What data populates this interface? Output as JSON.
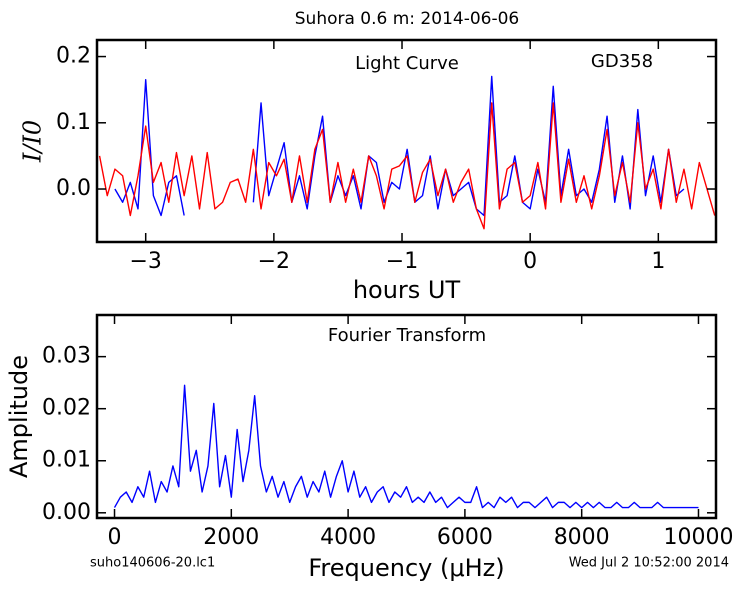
{
  "title": "Suhora 0.6 m:  2014-06-06",
  "footer": {
    "left": "suho140606-20.lc1",
    "right": "Wed Jul  2 10:52:00 2014"
  },
  "chart_data": [
    {
      "type": "line",
      "annotation": "Light Curve",
      "target": "GD358",
      "xlabel": "hours UT",
      "ylabel": "I/I0",
      "xlim": [
        -3.38,
        1.45
      ],
      "ylim": [
        -0.08,
        0.225
      ],
      "xticks": [
        {
          "value": -3,
          "label": "−3"
        },
        {
          "value": -2,
          "label": "−2"
        },
        {
          "value": -1,
          "label": "−1"
        },
        0,
        1
      ],
      "yticks": [
        {
          "value": 0,
          "label": "0.0"
        },
        0.1,
        0.2
      ],
      "x": [
        -3.36,
        -3.3,
        -3.24,
        -3.18,
        -3.12,
        -3.06,
        -3.0,
        -2.94,
        -2.88,
        -2.82,
        -2.76,
        -2.7,
        -2.64,
        -2.58,
        -2.52,
        -2.46,
        -2.4,
        -2.34,
        -2.28,
        -2.22,
        -2.16,
        -2.1,
        -2.04,
        -1.98,
        -1.92,
        -1.86,
        -1.8,
        -1.74,
        -1.68,
        -1.62,
        -1.56,
        -1.5,
        -1.44,
        -1.38,
        -1.32,
        -1.26,
        -1.2,
        -1.14,
        -1.08,
        -1.02,
        -0.96,
        -0.9,
        -0.84,
        -0.78,
        -0.72,
        -0.66,
        -0.6,
        -0.54,
        -0.48,
        -0.42,
        -0.36,
        -0.3,
        -0.24,
        -0.18,
        -0.12,
        -0.06,
        0.0,
        0.06,
        0.12,
        0.18,
        0.24,
        0.3,
        0.36,
        0.42,
        0.48,
        0.54,
        0.6,
        0.66,
        0.72,
        0.78,
        0.84,
        0.9,
        0.96,
        1.02,
        1.08,
        1.14,
        1.2,
        1.26,
        1.32,
        1.38,
        1.44
      ],
      "series": [
        {
          "color": "#0000ff",
          "values": [
            null,
            null,
            0.0,
            -0.02,
            0.01,
            -0.03,
            0.165,
            -0.01,
            -0.04,
            0.01,
            0.02,
            -0.04,
            null,
            null,
            null,
            null,
            null,
            null,
            null,
            null,
            -0.02,
            0.13,
            -0.01,
            0.03,
            0.07,
            -0.02,
            0.02,
            -0.03,
            0.05,
            0.11,
            -0.02,
            0.02,
            -0.01,
            0.02,
            -0.03,
            0.05,
            0.04,
            -0.02,
            0.01,
            0.0,
            0.06,
            -0.02,
            -0.01,
            0.05,
            -0.03,
            0.03,
            -0.01,
            0.0,
            0.01,
            -0.03,
            -0.04,
            0.17,
            -0.02,
            -0.01,
            0.05,
            -0.02,
            -0.03,
            0.03,
            -0.02,
            0.155,
            -0.01,
            0.06,
            -0.01,
            0.0,
            -0.02,
            0.03,
            0.11,
            -0.02,
            0.05,
            -0.03,
            0.12,
            -0.01,
            0.05,
            -0.02,
            0.06,
            -0.01,
            0.0,
            null,
            null,
            null,
            null
          ]
        },
        {
          "color": "#ff0000",
          "values": [
            0.05,
            -0.01,
            0.03,
            0.02,
            -0.04,
            0.02,
            0.095,
            0.01,
            0.04,
            -0.02,
            0.055,
            -0.01,
            0.05,
            -0.03,
            0.055,
            -0.03,
            -0.02,
            0.01,
            0.015,
            -0.02,
            0.06,
            -0.03,
            0.04,
            0.02,
            0.045,
            -0.02,
            0.05,
            -0.02,
            0.06,
            0.09,
            -0.02,
            0.04,
            -0.02,
            0.03,
            -0.02,
            0.05,
            0.02,
            -0.03,
            0.03,
            0.035,
            0.05,
            -0.02,
            0.025,
            0.045,
            -0.01,
            0.03,
            -0.02,
            0.01,
            0.03,
            -0.03,
            -0.06,
            0.13,
            -0.03,
            0.03,
            0.04,
            -0.02,
            -0.01,
            0.04,
            -0.03,
            0.13,
            -0.02,
            0.045,
            -0.02,
            0.02,
            -0.03,
            0.02,
            0.09,
            -0.01,
            0.04,
            -0.02,
            0.1,
            0.0,
            0.03,
            -0.03,
            0.06,
            -0.02,
            0.03,
            -0.03,
            0.04,
            0.0,
            -0.04
          ]
        }
      ]
    },
    {
      "type": "line",
      "annotation": "Fourier Transform",
      "xlabel": "Frequency (μHz)",
      "ylabel": "Amplitude",
      "xlim": [
        -300,
        10300
      ],
      "ylim": [
        -0.001,
        0.038
      ],
      "xticks": [
        0,
        2000,
        4000,
        6000,
        8000,
        10000
      ],
      "yticks": [
        {
          "value": 0,
          "label": "0.00"
        },
        0.01,
        0.02,
        0.03
      ],
      "x": [
        0,
        100,
        200,
        300,
        400,
        500,
        600,
        700,
        800,
        900,
        1000,
        1100,
        1200,
        1300,
        1400,
        1500,
        1600,
        1700,
        1800,
        1900,
        2000,
        2100,
        2200,
        2300,
        2400,
        2500,
        2600,
        2700,
        2800,
        2900,
        3000,
        3100,
        3200,
        3300,
        3400,
        3500,
        3600,
        3700,
        3800,
        3900,
        4000,
        4100,
        4200,
        4300,
        4400,
        4500,
        4600,
        4700,
        4800,
        4900,
        5000,
        5100,
        5200,
        5300,
        5400,
        5500,
        5600,
        5700,
        5800,
        5900,
        6000,
        6100,
        6200,
        6300,
        6400,
        6500,
        6600,
        6700,
        6800,
        6900,
        7000,
        7100,
        7200,
        7300,
        7400,
        7500,
        7600,
        7700,
        7800,
        7900,
        8000,
        8100,
        8200,
        8300,
        8400,
        8500,
        8600,
        8700,
        8800,
        8900,
        9000,
        9100,
        9200,
        9300,
        9400,
        9500,
        9600,
        9700,
        9800,
        9900,
        10000
      ],
      "series": [
        {
          "color": "#0000ff",
          "values": [
            0.001,
            0.003,
            0.004,
            0.002,
            0.005,
            0.003,
            0.008,
            0.002,
            0.006,
            0.004,
            0.009,
            0.005,
            0.0245,
            0.008,
            0.012,
            0.004,
            0.009,
            0.021,
            0.005,
            0.011,
            0.003,
            0.016,
            0.006,
            0.012,
            0.0225,
            0.009,
            0.004,
            0.007,
            0.003,
            0.006,
            0.002,
            0.005,
            0.007,
            0.003,
            0.006,
            0.004,
            0.008,
            0.003,
            0.007,
            0.01,
            0.004,
            0.008,
            0.003,
            0.005,
            0.002,
            0.004,
            0.005,
            0.002,
            0.004,
            0.003,
            0.005,
            0.002,
            0.003,
            0.002,
            0.004,
            0.002,
            0.003,
            0.001,
            0.002,
            0.003,
            0.002,
            0.002,
            0.005,
            0.001,
            0.002,
            0.001,
            0.003,
            0.002,
            0.003,
            0.001,
            0.002,
            0.002,
            0.001,
            0.002,
            0.003,
            0.001,
            0.002,
            0.002,
            0.001,
            0.002,
            0.001,
            0.002,
            0.001,
            0.002,
            0.001,
            0.001,
            0.002,
            0.001,
            0.001,
            0.002,
            0.001,
            0.001,
            0.001,
            0.002,
            0.001,
            0.001,
            0.001,
            0.001,
            0.001,
            0.001,
            0.001
          ]
        }
      ]
    }
  ]
}
